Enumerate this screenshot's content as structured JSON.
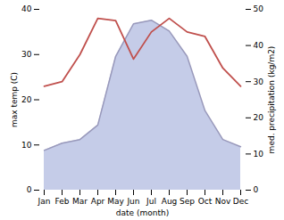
{
  "chart_data": {
    "type": "line",
    "categories": [
      "Jan",
      "Feb",
      "Mar",
      "Apr",
      "May",
      "Jun",
      "Jul",
      "Aug",
      "Sep",
      "Oct",
      "Nov",
      "Dec"
    ],
    "series": [
      {
        "type": "area",
        "axis": "y2",
        "color": "#c5cce8",
        "values": [
          11,
          13,
          14,
          18,
          37,
          46,
          47,
          44,
          37,
          22,
          14,
          12
        ]
      },
      {
        "type": "line",
        "axis": "y2",
        "color": "#9999bb",
        "values": [
          11,
          13,
          14,
          18,
          37,
          46,
          47,
          44,
          37,
          22,
          14,
          12
        ]
      },
      {
        "type": "line",
        "color": "#c0504d",
        "values": [
          23,
          24,
          30,
          38,
          37.5,
          29,
          35,
          38,
          35,
          34,
          27,
          23
        ]
      }
    ],
    "xlabel": "date (month)",
    "ylabel": "max temp (C)",
    "y2label": "med. precipitation (kg/m2)",
    "ylim": [
      0,
      40
    ],
    "yticks": [
      0,
      10,
      20,
      30,
      40
    ],
    "y2lim": [
      0,
      50
    ],
    "y2ticks": [
      0,
      10,
      20,
      30,
      40,
      50
    ],
    "grid": false
  }
}
